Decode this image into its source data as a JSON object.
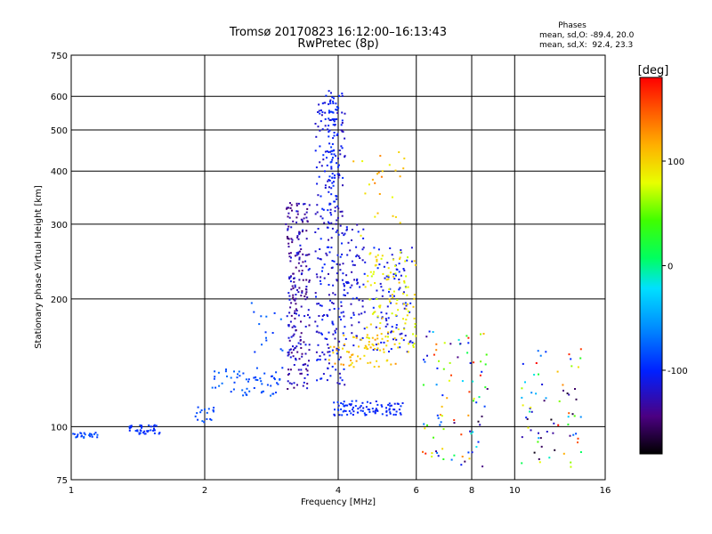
{
  "title_line1": "Tromsø 20170823 16:12:00–16:13:43",
  "title_line2": "RwPretec (8p)",
  "phases": {
    "heading": "Phases",
    "line_o": "mean, sd,O: -89.4, 20.0",
    "line_x": "mean, sd,X:  92.4, 23.3"
  },
  "colorbar": {
    "unit_label": "[deg]",
    "min": -180,
    "max": 180,
    "ticks": [
      100,
      0,
      -100
    ],
    "tick_labels": [
      "100",
      "0",
      "-100"
    ]
  },
  "chart_data": {
    "type": "scatter",
    "xlabel": "Frequency [MHz]",
    "ylabel": "Stationary phase Virtual Height [km]",
    "xscale": "log",
    "yscale": "log",
    "xlim": [
      1,
      16
    ],
    "ylim": [
      75,
      750
    ],
    "x_ticks": [
      1,
      2,
      4,
      6,
      8,
      10,
      16
    ],
    "x_tick_labels": [
      "1",
      "2",
      "4",
      "6",
      "8",
      "10",
      "16"
    ],
    "y_ticks": [
      75,
      100,
      200,
      300,
      400,
      500,
      600,
      750
    ],
    "y_tick_labels": [
      "75",
      "100",
      "200",
      "300",
      "400",
      "500",
      "600",
      "750"
    ],
    "grid": true,
    "color_encodes": "phase [deg]",
    "clusters": [
      {
        "x": [
          1.0,
          1.15
        ],
        "y": [
          94,
          97
        ],
        "phase": [
          -95,
          -75
        ],
        "n": 25
      },
      {
        "x": [
          1.35,
          1.62
        ],
        "y": [
          96,
          101
        ],
        "phase": [
          -105,
          -85
        ],
        "n": 40
      },
      {
        "x": [
          1.9,
          2.1
        ],
        "y": [
          102,
          112
        ],
        "phase": [
          -95,
          -75
        ],
        "n": 18
      },
      {
        "x": [
          2.05,
          3.0
        ],
        "y": [
          118,
          138
        ],
        "phase": [
          -95,
          -70
        ],
        "n": 60
      },
      {
        "x": [
          2.55,
          3.0
        ],
        "y": [
          145,
          200
        ],
        "phase": [
          -95,
          -70
        ],
        "n": 15
      },
      {
        "x": [
          3.05,
          3.45
        ],
        "y": [
          122,
          340
        ],
        "phase": [
          -150,
          -105
        ],
        "n": 230
      },
      {
        "x": [
          3.55,
          4.15
        ],
        "y": [
          125,
          620
        ],
        "phase": [
          -130,
          -95
        ],
        "n": 260
      },
      {
        "x": [
          3.8,
          4.0
        ],
        "y": [
          330,
          600
        ],
        "phase": [
          -110,
          -90
        ],
        "n": 60
      },
      {
        "x": [
          4.1,
          4.6
        ],
        "y": [
          150,
          300
        ],
        "phase": [
          -130,
          -100
        ],
        "n": 70
      },
      {
        "x": [
          3.9,
          5.6
        ],
        "y": [
          106,
          115
        ],
        "phase": [
          -110,
          -90
        ],
        "n": 90
      },
      {
        "x": [
          4.8,
          5.9
        ],
        "y": [
          150,
          265
        ],
        "phase": [
          -120,
          -95
        ],
        "n": 90
      },
      {
        "x": [
          4.6,
          6.0
        ],
        "y": [
          150,
          260
        ],
        "phase": [
          70,
          110
        ],
        "n": 110
      },
      {
        "x": [
          3.8,
          5.4
        ],
        "y": [
          138,
          165
        ],
        "phase": [
          90,
          130
        ],
        "n": 60
      },
      {
        "x": [
          4.3,
          5.7
        ],
        "y": [
          270,
          460
        ],
        "phase": [
          80,
          140
        ],
        "n": 25
      },
      {
        "x": [
          6.2,
          8.7
        ],
        "y": [
          80,
          170
        ],
        "phase": [
          -180,
          180
        ],
        "n": 90
      },
      {
        "x": [
          10.3,
          14.2
        ],
        "y": [
          80,
          155
        ],
        "phase": [
          -180,
          180
        ],
        "n": 70
      }
    ]
  }
}
